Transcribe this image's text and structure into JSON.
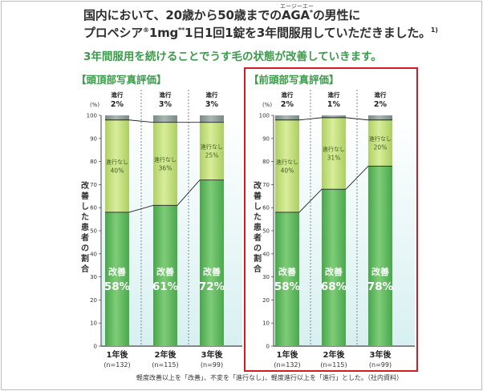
{
  "header": {
    "line1_a": "国内において、20歳から50歳までの",
    "line1_aga": "AGA",
    "line1_ast": "*",
    "line1_ruby": "エージーエー",
    "line1_b": "の男性に",
    "line2_a": "プロペシア",
    "line2_reg": "®",
    "line2_b": "1mg",
    "line2_ast": "**",
    "line2_c": "1日1回1錠を3年間服用していただきました。",
    "line2_ref": "1)",
    "subtitle": "3年間服用を続けることでうす毛の状態が改善していきます。"
  },
  "colors": {
    "improved": "#5cb85e",
    "nochange": "#c2de7a",
    "progress": "#8e9d98",
    "background_gradient": "#d8f0f1",
    "accent_title": "#3c9a4b",
    "highlight_border": "#d41c24"
  },
  "chart_data": [
    {
      "type": "bar",
      "stacked": true,
      "title": "【頭頂部写真評価】",
      "ylabel": "改善した患者の割合",
      "yunit": "(%)",
      "ylim": [
        0,
        100
      ],
      "yticks": [
        "0",
        "10",
        "20",
        "30",
        "40",
        "50",
        "60",
        "70",
        "80",
        "90",
        "100"
      ],
      "categories": [
        "1年後",
        "2年後",
        "3年後"
      ],
      "n_labels": [
        "(n=132)",
        "(n=115)",
        "(n=99)"
      ],
      "series": [
        {
          "name": "改善",
          "values": [
            58,
            61,
            72
          ],
          "labels": [
            "58%",
            "61%",
            "72%"
          ]
        },
        {
          "name": "進行なし",
          "values": [
            40,
            36,
            25
          ],
          "labels": [
            "40%",
            "36%",
            "25%"
          ]
        },
        {
          "name": "進行",
          "values": [
            2,
            3,
            3
          ],
          "labels": [
            "2%",
            "3%",
            "3%"
          ]
        }
      ],
      "highlighted": false
    },
    {
      "type": "bar",
      "stacked": true,
      "title": "【前頭部写真評価】",
      "ylabel": "改善した患者の割合",
      "yunit": "(%)",
      "ylim": [
        0,
        100
      ],
      "yticks": [
        "0",
        "10",
        "20",
        "30",
        "40",
        "50",
        "60",
        "70",
        "80",
        "90",
        "100"
      ],
      "categories": [
        "1年後",
        "2年後",
        "3年後"
      ],
      "n_labels": [
        "(n=132)",
        "(n=115)",
        "(n=99)"
      ],
      "series": [
        {
          "name": "改善",
          "values": [
            58,
            68,
            78
          ],
          "labels": [
            "58%",
            "68%",
            "78%"
          ]
        },
        {
          "name": "進行なし",
          "values": [
            40,
            31,
            20
          ],
          "labels": [
            "40%",
            "31%",
            "20%"
          ]
        },
        {
          "name": "進行",
          "values": [
            2,
            1,
            2
          ],
          "labels": [
            "2%",
            "1%",
            "2%"
          ]
        }
      ],
      "highlighted": true
    }
  ],
  "footnote": "軽度改善以上を「改善」、不変を「進行なし」、軽度進行以上を「進行」とした。",
  "source": "（社内資料）"
}
